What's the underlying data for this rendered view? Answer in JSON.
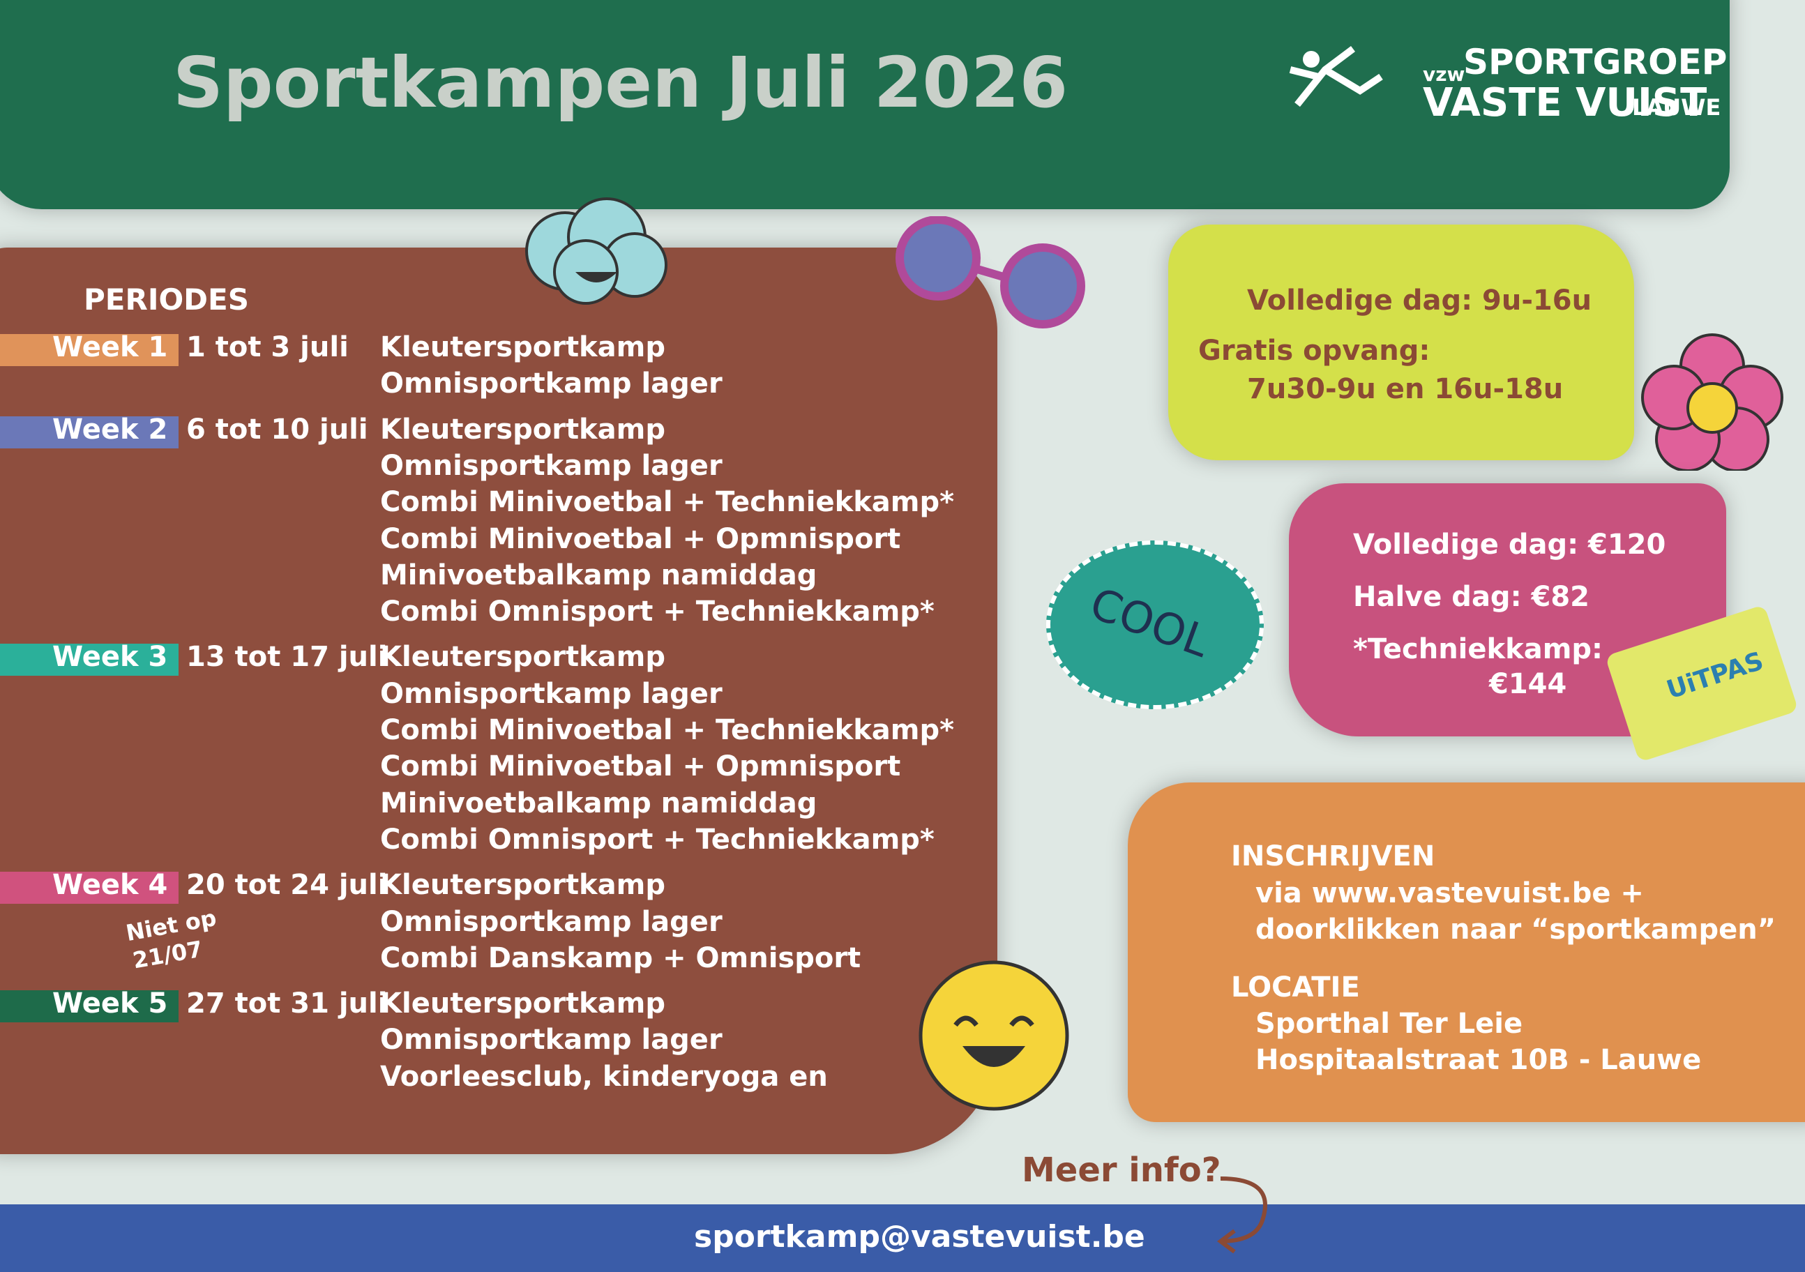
{
  "header": {
    "title": "Sportkampen Juli 2026",
    "logo": {
      "prefix": "vzw",
      "line1": "SPORTGROEP",
      "line2": "VASTE VUIST",
      "place": "LAUWE"
    }
  },
  "periods": {
    "heading": "PERIODES",
    "weeks": [
      {
        "label": "Week 1",
        "color": "#e0935a",
        "dates": "1 tot 3 juli",
        "camps": [
          "Kleutersportkamp",
          "Omnisportkamp lager"
        ]
      },
      {
        "label": "Week 2",
        "color": "#6b78b8",
        "dates": "6 tot 10 juli",
        "camps": [
          "Kleutersportkamp",
          "Omnisportkamp lager",
          "Combi Minivoetbal + Techniekkamp*",
          "Combi Minivoetbal + Opmnisport",
          "Minivoetbalkamp namiddag",
          "Combi Omnisport + Techniekkamp*"
        ]
      },
      {
        "label": "Week 3",
        "color": "#2bb09a",
        "dates": "13 tot 17 juli",
        "camps": [
          "Kleutersportkamp",
          "Omnisportkamp lager",
          "Combi Minivoetbal + Techniekkamp*",
          "Combi Minivoetbal + Opmnisport",
          "Minivoetbalkamp namiddag",
          "Combi Omnisport + Techniekkamp*"
        ]
      },
      {
        "label": "Week 4",
        "color": "#d0527e",
        "dates": "20 tot 24 juli",
        "note": [
          "Niet op",
          "21/07"
        ],
        "camps": [
          "Kleutersportkamp",
          "Omnisportkamp lager",
          "Combi Danskamp + Omnisport"
        ]
      },
      {
        "label": "Week 5",
        "color": "#1e6b4a",
        "dates": "27 tot 31 juli",
        "camps": [
          "Kleutersportkamp",
          "Omnisportkamp lager",
          "Voorleesclub, kinderyoga en"
        ]
      }
    ]
  },
  "hours": [
    "Volledige dag: 9u-16u",
    "Gratis opvang:",
    "7u30-9u en 16u-18u"
  ],
  "prices": [
    "Volledige dag: €120",
    "Halve dag: €82",
    "*Techniekkamp:",
    "€144"
  ],
  "stickers": {
    "cool": "COOL",
    "card": "UiTPAS"
  },
  "registration": {
    "heading": "INSCHRIJVEN",
    "lines": [
      "via www.vastevuist.be +",
      "doorklikken naar “sportkampen”"
    ],
    "location_heading": "LOCATIE",
    "location": [
      "Sporthal Ter Leie",
      "Hospitaalstraat 10B - Lauwe"
    ]
  },
  "more_info": "Meer info?",
  "footer": {
    "email": "sportkamp@vastevuist.be"
  }
}
